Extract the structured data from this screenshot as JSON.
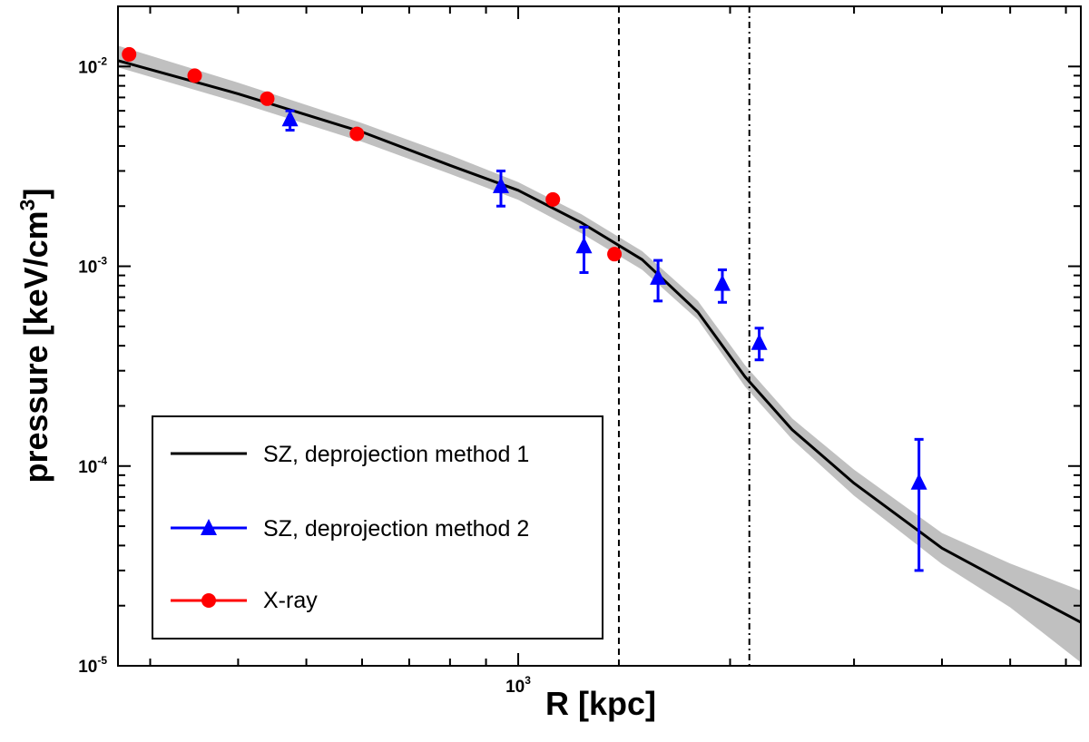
{
  "chart_data": {
    "type": "scatter",
    "xlabel": "R [kpc]",
    "ylabel": "pressure [keV/cm3]",
    "x_scale": "log",
    "y_scale": "log",
    "xlim": [
      270,
      6300
    ],
    "ylim": [
      1e-05,
      0.02
    ],
    "x_tick_labels": [
      {
        "value": 1000,
        "base": "10",
        "exp": "3"
      }
    ],
    "y_tick_labels": [
      {
        "value": 0.01,
        "base": "10",
        "exp": "-2"
      },
      {
        "value": 0.001,
        "base": "10",
        "exp": "-3"
      },
      {
        "value": 0.0001,
        "base": "10",
        "exp": "-4"
      },
      {
        "value": 1e-05,
        "base": "10",
        "exp": "-5"
      }
    ],
    "vertical_lines": [
      {
        "x": 1390,
        "style": "dashed"
      },
      {
        "x": 2130,
        "style": "dash-dot"
      }
    ],
    "legend": {
      "position": "bottom-left",
      "entries": [
        {
          "label": "SZ, deprojection method 1",
          "series": "sz_method_1"
        },
        {
          "label": "SZ, deprojection method 2",
          "series": "sz_method_2"
        },
        {
          "label": "X-ray",
          "series": "xray"
        }
      ]
    },
    "series": [
      {
        "name": "SZ, deprojection method 1",
        "id": "sz_method_1",
        "kind": "line",
        "color": "#000000",
        "x": [
          270,
          400,
          600,
          800,
          1000,
          1230,
          1500,
          1800,
          2100,
          2450,
          3000,
          4000,
          5000,
          6300
        ],
        "y": [
          0.0107,
          0.0073,
          0.0047,
          0.0032,
          0.0024,
          0.00165,
          0.00108,
          0.00059,
          0.00028,
          0.000152,
          8.2e-05,
          3.88e-05,
          2.54e-05,
          1.65e-05
        ]
      },
      {
        "name": "SZ uncertainty band",
        "id": "sz_band",
        "kind": "band",
        "color": "#c0c0c0",
        "x": [
          270,
          400,
          600,
          800,
          1000,
          1230,
          1500,
          1800,
          2100,
          2450,
          3000,
          4000,
          5000,
          6300
        ],
        "y_low": [
          0.0099,
          0.0066,
          0.0042,
          0.0029,
          0.00215,
          0.00146,
          0.00096,
          0.00054,
          0.00025,
          0.000136,
          7.1e-05,
          3.23e-05,
          1.96e-05,
          1.04e-05
        ],
        "y_high": [
          0.0127,
          0.0083,
          0.0052,
          0.0036,
          0.00264,
          0.00182,
          0.00119,
          0.00067,
          0.00032,
          0.000173,
          9.6e-05,
          4.62e-05,
          3.25e-05,
          2.38e-05
        ]
      },
      {
        "name": "SZ, deprojection method 2",
        "id": "sz_method_2",
        "kind": "markers",
        "marker": "triangle",
        "color": "#0000ff",
        "x": [
          474,
          945,
          1240,
          1580,
          1950,
          2200,
          3710
        ],
        "y": [
          0.0054,
          0.0025,
          0.00125,
          0.00087,
          0.00081,
          0.00041,
          8.2e-05
        ],
        "y_err_low": [
          0.0048,
          0.002,
          0.00093,
          0.00067,
          0.00066,
          0.00034,
          3e-05
        ],
        "y_err_high": [
          0.006,
          0.003,
          0.00157,
          0.00107,
          0.00096,
          0.00049,
          0.000136
        ]
      },
      {
        "name": "X-ray",
        "id": "xray",
        "kind": "markers",
        "marker": "circle",
        "color": "#ff0000",
        "x": [
          280,
          347,
          440,
          590,
          1120,
          1370
        ],
        "y": [
          0.0115,
          0.009,
          0.0069,
          0.0046,
          0.00216,
          0.00115
        ]
      }
    ]
  }
}
